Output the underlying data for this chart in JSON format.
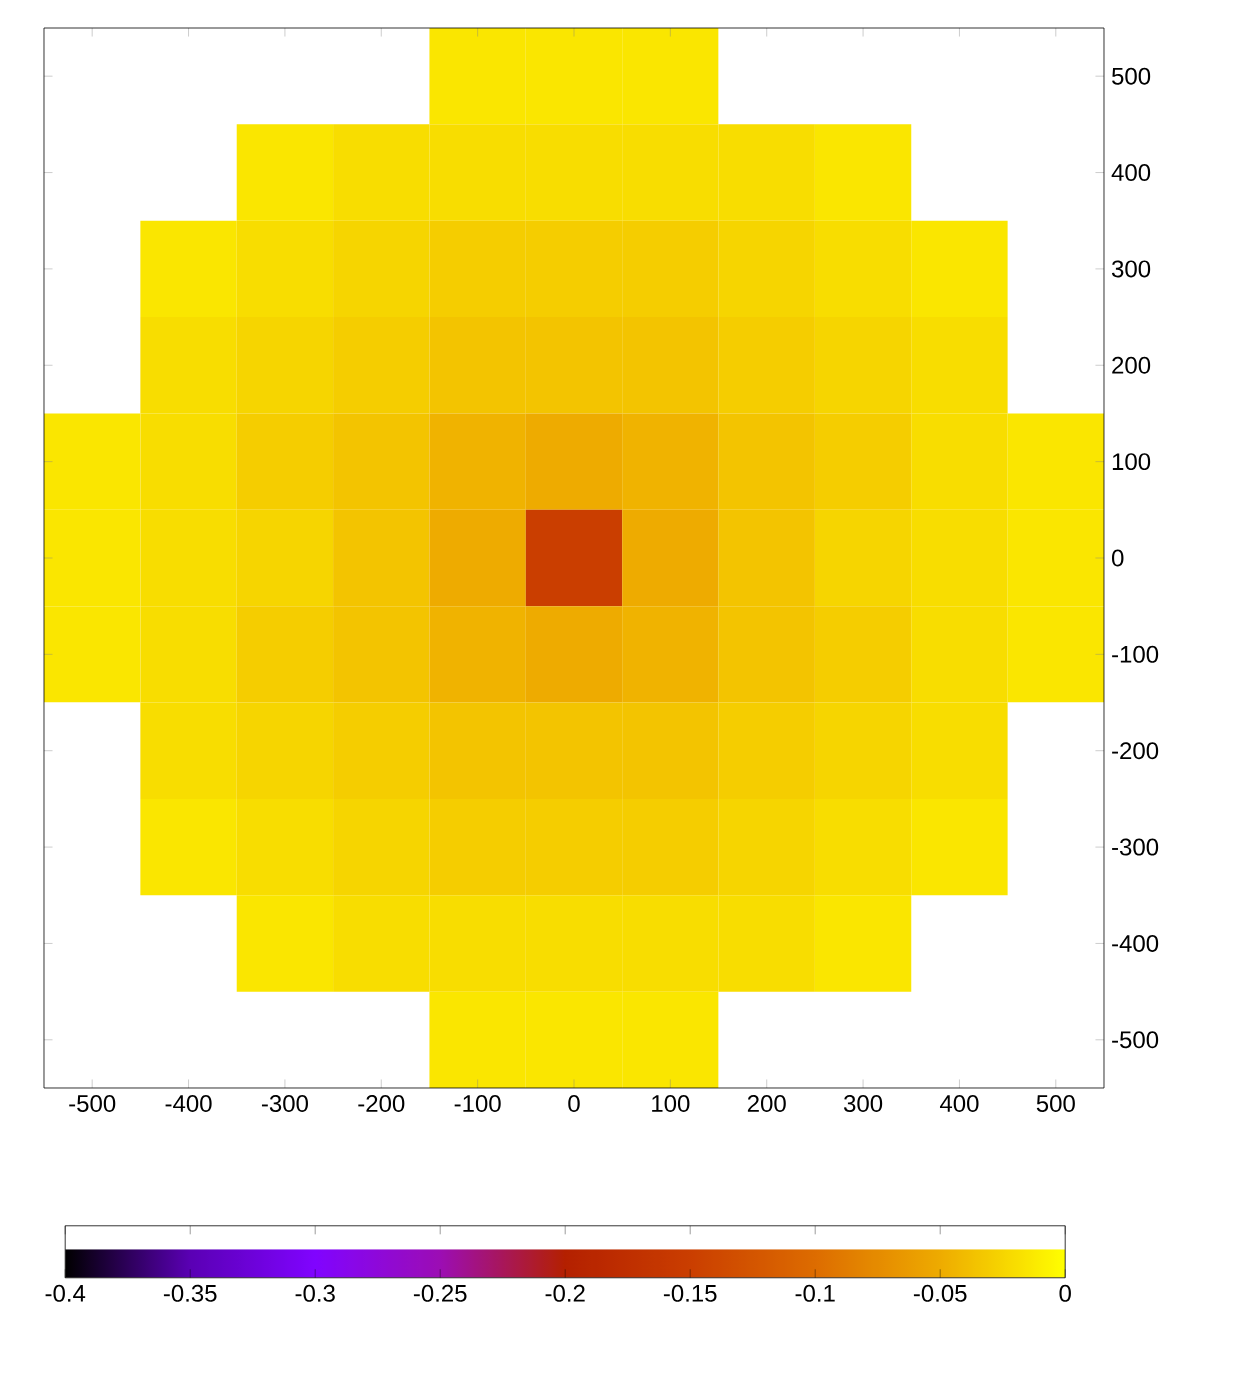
{
  "chart_data": {
    "type": "heatmap",
    "categories": [
      "-500",
      "-400",
      "-300",
      "-200",
      "-100",
      "0",
      "100",
      "200",
      "300",
      "400",
      "500"
    ],
    "y_categories": [
      "500",
      "400",
      "300",
      "200",
      "100",
      "0",
      "-100",
      "-200",
      "-300",
      "-400",
      "-500"
    ],
    "cells": [
      [
        null,
        null,
        null,
        null,
        -0.015,
        -0.015,
        -0.015,
        null,
        null,
        null,
        null
      ],
      [
        null,
        null,
        -0.015,
        -0.02,
        -0.02,
        -0.02,
        -0.02,
        -0.02,
        -0.015,
        null,
        null
      ],
      [
        null,
        -0.015,
        -0.02,
        -0.025,
        -0.03,
        -0.03,
        -0.03,
        -0.025,
        -0.02,
        -0.015,
        null
      ],
      [
        null,
        -0.02,
        -0.025,
        -0.03,
        -0.035,
        -0.035,
        -0.035,
        -0.03,
        -0.025,
        -0.02,
        null
      ],
      [
        -0.015,
        -0.02,
        -0.03,
        -0.035,
        -0.045,
        -0.05,
        -0.045,
        -0.035,
        -0.03,
        -0.02,
        -0.015
      ],
      [
        -0.015,
        -0.02,
        -0.025,
        -0.035,
        -0.05,
        -0.15,
        -0.05,
        -0.035,
        -0.025,
        -0.02,
        -0.015
      ],
      [
        -0.015,
        -0.02,
        -0.03,
        -0.035,
        -0.045,
        -0.05,
        -0.045,
        -0.035,
        -0.03,
        -0.02,
        -0.015
      ],
      [
        null,
        -0.02,
        -0.025,
        -0.03,
        -0.035,
        -0.035,
        -0.035,
        -0.03,
        -0.025,
        -0.02,
        null
      ],
      [
        null,
        -0.015,
        -0.02,
        -0.025,
        -0.03,
        -0.03,
        -0.03,
        -0.025,
        -0.02,
        -0.015,
        null
      ],
      [
        null,
        null,
        -0.015,
        -0.02,
        -0.02,
        -0.02,
        -0.02,
        -0.02,
        -0.015,
        null,
        null
      ],
      [
        null,
        null,
        null,
        null,
        -0.015,
        -0.015,
        -0.015,
        null,
        null,
        null,
        null
      ]
    ],
    "clim": [
      -0.4,
      0
    ],
    "cticks": [
      -0.4,
      -0.35,
      -0.3,
      -0.25,
      -0.2,
      -0.15,
      -0.1,
      -0.05,
      0
    ]
  }
}
